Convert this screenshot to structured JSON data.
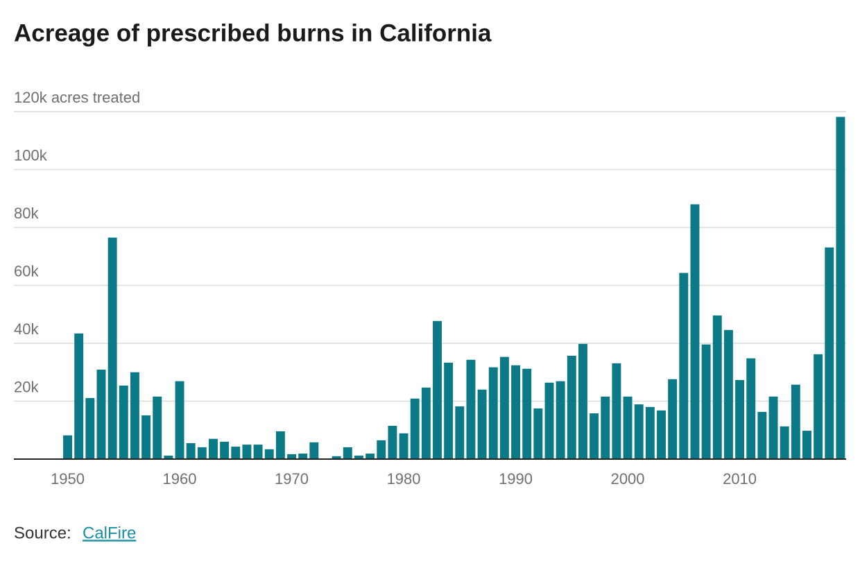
{
  "chart_data": {
    "type": "bar",
    "title": "Acreage of prescribed burns in California",
    "x": [
      1950,
      1951,
      1952,
      1953,
      1954,
      1955,
      1956,
      1957,
      1958,
      1959,
      1960,
      1961,
      1962,
      1963,
      1964,
      1965,
      1966,
      1967,
      1968,
      1969,
      1970,
      1971,
      1972,
      1973,
      1974,
      1975,
      1976,
      1977,
      1978,
      1979,
      1980,
      1981,
      1982,
      1983,
      1984,
      1985,
      1986,
      1987,
      1988,
      1989,
      1990,
      1991,
      1992,
      1993,
      1994,
      1995,
      1996,
      1997,
      1998,
      1999,
      2000,
      2001,
      2002,
      2003,
      2004,
      2005,
      2006,
      2007,
      2008,
      2009,
      2010,
      2011,
      2012,
      2013,
      2014,
      2015,
      2016,
      2017,
      2018,
      2019
    ],
    "values": [
      8200,
      43400,
      21100,
      30900,
      76500,
      25400,
      30000,
      15100,
      21600,
      1200,
      26900,
      5500,
      4100,
      7000,
      6000,
      4300,
      5000,
      5000,
      3400,
      9600,
      1700,
      1900,
      5800,
      0,
      1000,
      4100,
      1200,
      1900,
      6500,
      11500,
      8900,
      20900,
      24700,
      47700,
      33300,
      18200,
      34300,
      24000,
      31700,
      35300,
      32400,
      31200,
      17500,
      26400,
      26900,
      35700,
      39800,
      15800,
      21600,
      33100,
      21600,
      18900,
      18000,
      16800,
      27600,
      64300,
      88000,
      39600,
      49600,
      44600,
      27300,
      34800,
      16300,
      21600,
      11300,
      25700,
      9800,
      36200,
      73100,
      118200
    ],
    "color": "#0b7a86",
    "xlim": [
      1945.2,
      2019.5
    ],
    "xticks": [
      1950,
      1960,
      1970,
      1980,
      1990,
      2000,
      2010
    ],
    "ylim": [
      0,
      120000
    ],
    "yticks": [
      {
        "value": 20000,
        "label": "20k"
      },
      {
        "value": 40000,
        "label": "40k"
      },
      {
        "value": 60000,
        "label": "60k"
      },
      {
        "value": 80000,
        "label": "80k"
      },
      {
        "value": 100000,
        "label": "100k"
      },
      {
        "value": 120000,
        "label": "120k acres treated"
      }
    ],
    "grid": true,
    "source": "Source:",
    "source_link": "CalFire"
  }
}
